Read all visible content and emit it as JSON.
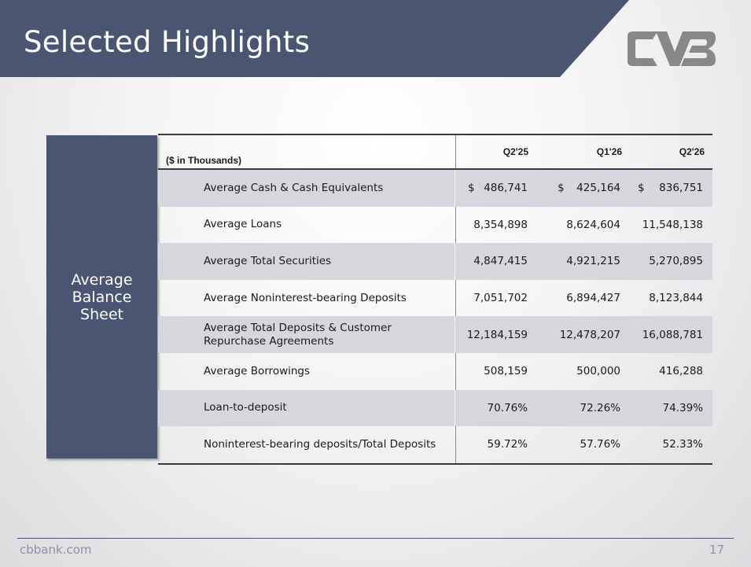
{
  "slide": {
    "title": "Selected Highlights",
    "section_label": "Average Balance Sheet",
    "units_label": "($ in Thousands)",
    "columns": [
      "Q2'25",
      "Q1'26",
      "Q2'26"
    ],
    "currency_symbol": "$",
    "rows": [
      {
        "label": "Average Cash & Cash Equivalents",
        "values": [
          "486,741",
          "425,164",
          "836,751"
        ]
      },
      {
        "label": "Average Loans",
        "values": [
          "8,354,898",
          "8,624,604",
          "11,548,138"
        ]
      },
      {
        "label": "Average Total Securities",
        "values": [
          "4,847,415",
          "4,921,215",
          "5,270,895"
        ]
      },
      {
        "label": "Average Noninterest-bearing Deposits",
        "values": [
          "7,051,702",
          "6,894,427",
          "8,123,844"
        ]
      },
      {
        "label": "Average Total Deposits & Customer Repurchase Agreements",
        "values": [
          "12,184,159",
          "12,478,207",
          "16,088,781"
        ]
      },
      {
        "label": "Average Borrowings",
        "values": [
          "508,159",
          "500,000",
          "416,288"
        ]
      },
      {
        "label": "Loan-to-deposit",
        "values": [
          "70.76%",
          "72.26%",
          "74.39%"
        ]
      },
      {
        "label": "Noninterest-bearing deposits/Total Deposits",
        "values": [
          "59.72%",
          "57.76%",
          "52.33%"
        ]
      }
    ]
  },
  "footer": {
    "site": "cbbank.com",
    "page_number": "17"
  },
  "colors": {
    "banner": "#4a5571",
    "shaded_row": "#d6d6dd",
    "logo": "#888888"
  },
  "logo_icon": "cvb-logo-icon"
}
